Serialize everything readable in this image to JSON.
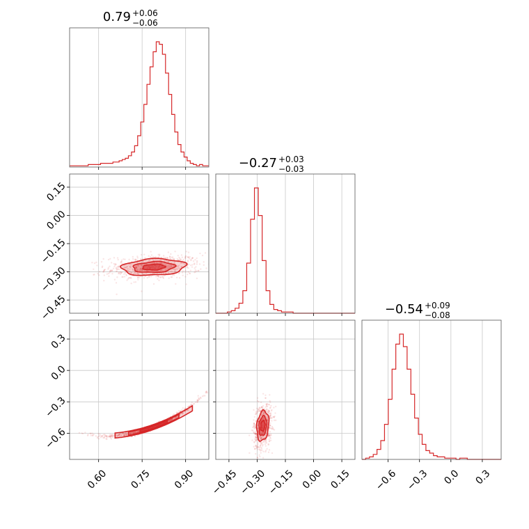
{
  "chart_data": {
    "type": "corner",
    "color": "#d62728",
    "grid": true,
    "titles": [
      {
        "value": "0.79",
        "plus": "+0.06",
        "minus": "−0.06"
      },
      {
        "value": "−0.27",
        "plus": "+0.03",
        "minus": "−0.03"
      },
      {
        "value": "−0.54",
        "plus": "+0.09",
        "minus": "−0.08"
      }
    ],
    "parameters": [
      {
        "range": [
          0.5,
          0.98
        ],
        "ticks": [
          0.6,
          0.75,
          0.9
        ],
        "tick_labels": [
          "0.60",
          "0.75",
          "0.90"
        ]
      },
      {
        "range": [
          -0.52,
          0.22
        ],
        "ticks": [
          -0.45,
          -0.3,
          -0.15,
          0.0,
          0.15
        ],
        "tick_labels": [
          "−0.45",
          "−0.30",
          "−0.15",
          "0.00",
          "0.15"
        ]
      },
      {
        "range": [
          -0.85,
          0.48
        ],
        "ticks": [
          -0.6,
          -0.3,
          0.0,
          0.3
        ],
        "tick_labels": [
          "−0.6",
          "−0.3",
          "0.0",
          "0.3"
        ]
      }
    ],
    "hist1d": [
      {
        "bin_edges_range": [
          0.5,
          0.98
        ],
        "counts": [
          1,
          1,
          1,
          1,
          1,
          1,
          2,
          2,
          2,
          2,
          3,
          3,
          3,
          3,
          4,
          4,
          5,
          6,
          7,
          9,
          12,
          17,
          25,
          36,
          50,
          66,
          80,
          92,
          100,
          98,
          90,
          75,
          58,
          42,
          28,
          18,
          12,
          8,
          5,
          3,
          2,
          1,
          2,
          1,
          1
        ]
      },
      {
        "bin_edges_range": [
          -0.52,
          0.22
        ],
        "counts": [
          0,
          0,
          0,
          1,
          2,
          4,
          8,
          18,
          40,
          75,
          100,
          78,
          42,
          18,
          7,
          3,
          2,
          1,
          1,
          1,
          0,
          0,
          0,
          0,
          0,
          0,
          0,
          0,
          0,
          0,
          0,
          0,
          0,
          0,
          0,
          0
        ]
      },
      {
        "bin_edges_range": [
          -0.85,
          0.48
        ],
        "counts": [
          0,
          1,
          2,
          4,
          8,
          15,
          28,
          48,
          72,
          92,
          100,
          90,
          72,
          52,
          33,
          20,
          12,
          7,
          5,
          3,
          2,
          2,
          1,
          1,
          1,
          0,
          1,
          1,
          0,
          0,
          0,
          0,
          0,
          0,
          0,
          0,
          0
        ]
      }
    ],
    "hist2d": [
      {
        "x": 0,
        "y": 1,
        "center": [
          0.79,
          -0.275
        ],
        "sigma": [
          0.055,
          0.022
        ],
        "corr": 0.15
      },
      {
        "x": 0,
        "y": 2,
        "center": [
          0.79,
          -0.54
        ],
        "sigma": [
          0.058,
          0.07
        ],
        "corr": 0.97
      },
      {
        "x": 1,
        "y": 2,
        "center": [
          -0.27,
          -0.53
        ],
        "sigma": [
          0.016,
          0.072
        ],
        "corr": 0.2
      }
    ]
  }
}
